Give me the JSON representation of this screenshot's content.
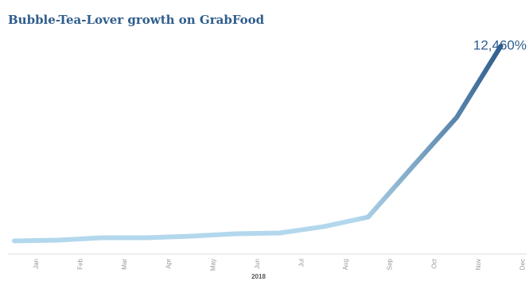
{
  "chart_data": {
    "type": "line",
    "title": "Bubble-Tea-Lover growth on GrabFood",
    "x_label": "2018",
    "annotation": "12,460%",
    "categories": [
      "Jan",
      "Feb",
      "Mar",
      "Apr",
      "May",
      "Jun",
      "Jul",
      "Aug",
      "Sep",
      "Oct",
      "Nov",
      "Dec"
    ],
    "values": [
      25,
      75,
      230,
      230,
      330,
      480,
      530,
      940,
      1550,
      4750,
      7900,
      12460
    ],
    "gradient": [
      "#b3d8ed",
      "#2f5d8c"
    ]
  }
}
